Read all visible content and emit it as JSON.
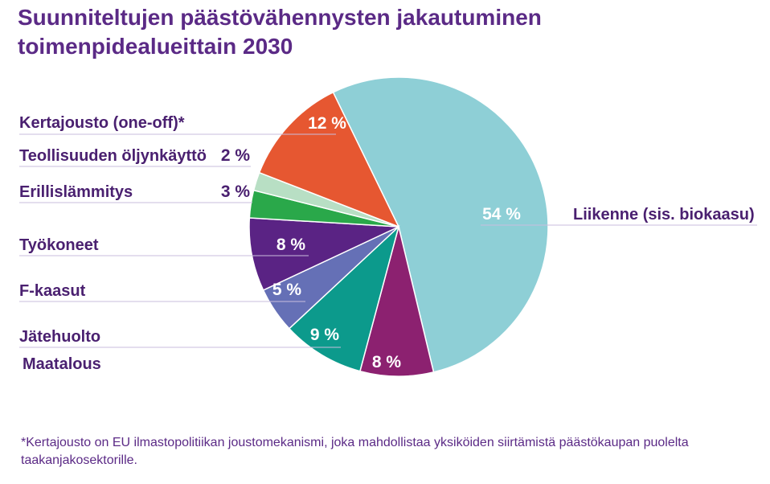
{
  "title": "Suunniteltujen päästövähennysten jakautuminen toimenpidealueittain 2030",
  "footnote": "*Kertajousto on EU ilmastopolitiikan joustomekanismi, joka mahdollistaa yksiköiden siirtämistä päästökaupan puolelta taakanjakosektorille.",
  "colors": {
    "title": "#5b2a86",
    "label": "#4a2070",
    "leader_line": "#c9bedd",
    "slice_outline": "#ffffff"
  },
  "chart_data": {
    "type": "pie",
    "title": "Suunniteltujen päästövähennysten jakautuminen toimenpidealueittain 2030",
    "unit": "%",
    "start_angle_deg": -26,
    "direction": "clockwise",
    "slices": [
      {
        "name": "Liikenne (sis. biokaasu)",
        "value": 54,
        "label": "54 %",
        "color": "#8ecfd6"
      },
      {
        "name": "Maatalous",
        "value": 8,
        "label": "8 %",
        "color": "#8c2170"
      },
      {
        "name": "Jätehuolto",
        "value": 9,
        "label": "9 %",
        "color": "#0c9a8c"
      },
      {
        "name": "F-kaasut",
        "value": 5,
        "label": "5 %",
        "color": "#6570b6"
      },
      {
        "name": "Työkoneet",
        "value": 8,
        "label": "8 %",
        "color": "#5a2384"
      },
      {
        "name": "Erillislämmitys",
        "value": 3,
        "label": "3 %",
        "color": "#2aa84a"
      },
      {
        "name": "Teollisuuden öljynkäyttö",
        "value": 2,
        "label": "2 %",
        "color": "#b8dfc4"
      },
      {
        "name": "Kertajousto (one-off)*",
        "value": 12,
        "label": "12 %",
        "color": "#e65731"
      }
    ]
  }
}
